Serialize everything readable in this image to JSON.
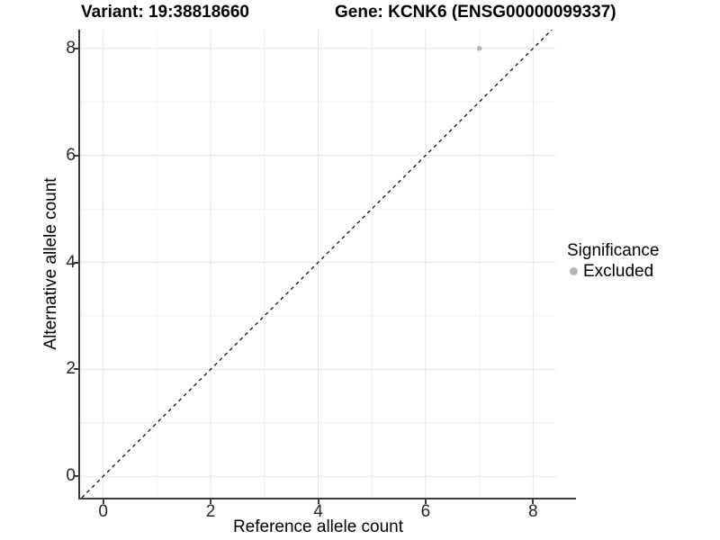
{
  "titles": {
    "variant": "Variant: 19:38818660",
    "gene": "Gene: KCNK6 (ENSG00000099337)"
  },
  "axes": {
    "x": {
      "label": "Reference allele count"
    },
    "y": {
      "label": "Alternative allele count"
    }
  },
  "legend": {
    "title": "Significance",
    "items": [
      {
        "label": "Excluded",
        "color": "#b5b5b5"
      }
    ]
  },
  "colors": {
    "axis_line": "#3c3c3c",
    "major_grid": "#e5e5e5",
    "minor_grid": "#f0f0f0",
    "reference_line": "#000000",
    "point": "#b5b5b5"
  },
  "chart_data": {
    "type": "scatter",
    "title_left": "Variant: 19:38818660",
    "title_right": "Gene: KCNK6 (ENSG00000099337)",
    "xlabel": "Reference allele count",
    "ylabel": "Alternative allele count",
    "xlim": [
      -0.43,
      8.43
    ],
    "ylim": [
      -0.4,
      8.35
    ],
    "x_major_ticks": [
      0,
      2,
      4,
      6,
      8
    ],
    "y_major_ticks": [
      0,
      2,
      4,
      6,
      8
    ],
    "x_minor_gridlines": [
      1,
      3,
      5,
      7
    ],
    "y_minor_gridlines": [
      1,
      3,
      5,
      7
    ],
    "grid": "on",
    "legend_position": "right",
    "reference_line": {
      "type": "identity y=x",
      "style": "dashed",
      "color": "#000000"
    },
    "series": [
      {
        "name": "Excluded",
        "color": "#b5b5b5",
        "points": [
          {
            "x": 7,
            "y": 8
          }
        ]
      }
    ]
  }
}
